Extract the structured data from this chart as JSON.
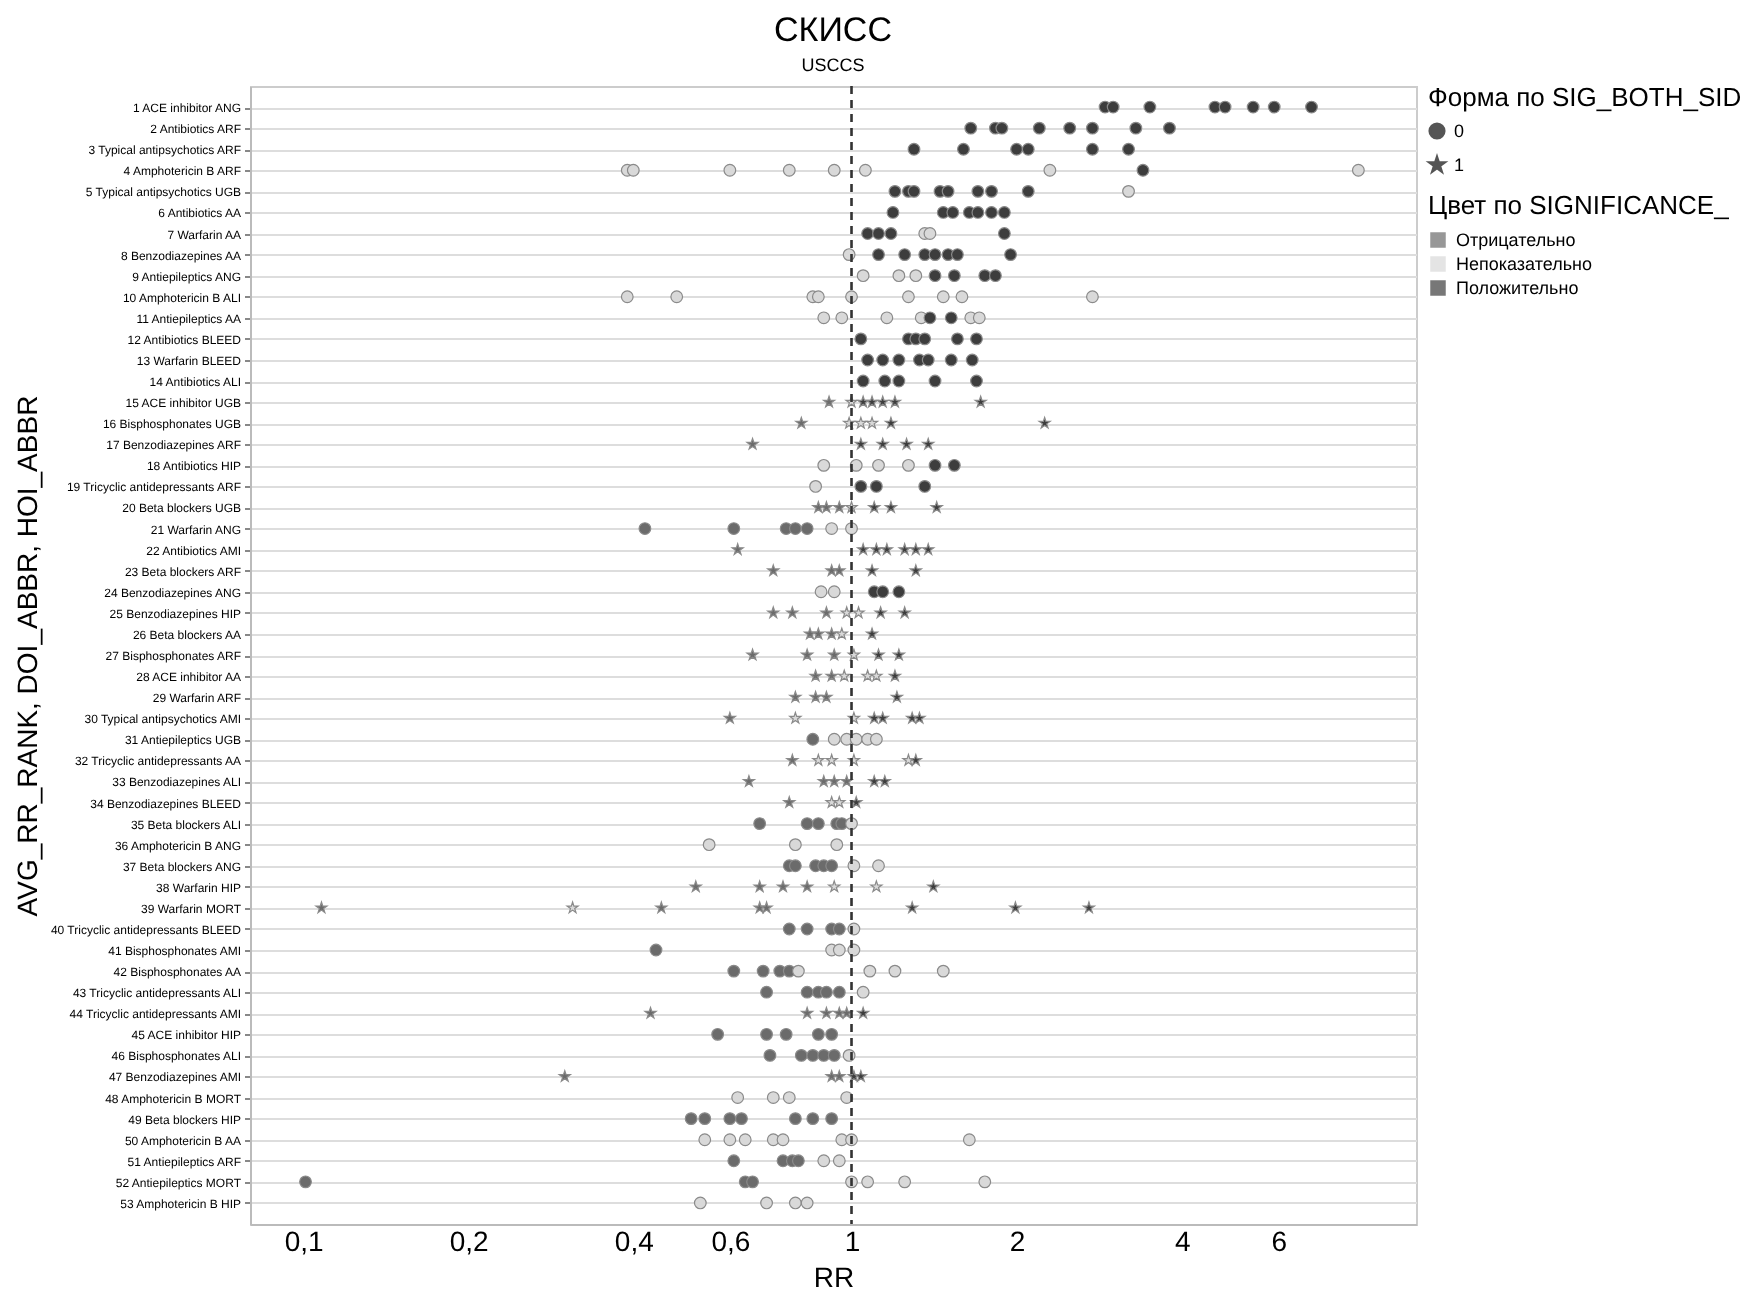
{
  "chart_data": {
    "type": "scatter",
    "orientation": "horizontal",
    "title": "СКИСС",
    "subtitle": "USCCS",
    "xlabel": "RR",
    "ylabel": "AVG_RR_RANK, DOI_ABBR, HOI_ABBR",
    "legend_title": "Цвет по SIGNIFICANCE_",
    "annotations": [
      "Форма по SIG_BOTH_SID",
      "0",
      "1"
    ],
    "legend": "top right",
    "grid": "y",
    "log": "x",
    "xlim": [
      0.08,
      10.7
    ],
    "xticks": [
      {
        "value": 0.1,
        "label": "0,1"
      },
      {
        "value": 0.2,
        "label": "0,2"
      },
      {
        "value": 0.4,
        "label": "0,4"
      },
      {
        "value": 0.6,
        "label": "0,6"
      },
      1,
      2,
      4,
      6
    ],
    "ref_lines": [
      {
        "axis": "x",
        "value": 1,
        "line_style": "dashed",
        "color": "#333333"
      }
    ],
    "categories": [
      "1 ACE inhibitor ANG",
      "2 Antibiotics ARF",
      "3 Typical antipsychotics ARF",
      "4 Amphotericin B ARF",
      "5 Typical antipsychotics UGB",
      "6 Antibiotics AA",
      "7 Warfarin AA",
      "8 Benzodiazepines AA",
      "9 Antiepileptics ANG",
      "10 Amphotericin B ALI",
      "11 Antiepileptics AA",
      "12 Antibiotics BLEED",
      "13 Warfarin BLEED",
      "14 Antibiotics ALI",
      "15 ACE inhibitor UGB",
      "16 Bisphosphonates UGB",
      "17 Benzodiazepines ARF",
      "18 Antibiotics HIP",
      "19 Tricyclic antidepressants ARF",
      "20 Beta blockers UGB",
      "21 Warfarin ANG",
      "22 Antibiotics AMI",
      "23 Beta blockers ARF",
      "24 Benzodiazepines ANG",
      "25 Benzodiazepines HIP",
      "26 Beta blockers AA",
      "27 Bisphosphonates ARF",
      "28 ACE inhibitor AA",
      "29 Warfarin ARF",
      "30 Typical antipsychotics AMI",
      "31 Antiepileptics UGB",
      "32 Tricyclic antidepressants AA",
      "33 Benzodiazepines ALI",
      "34 Benzodiazepines BLEED",
      "35 Beta blockers ALI",
      "36 Amphotericin B ANG",
      "37 Beta blockers ANG",
      "38 Warfarin HIP",
      "39 Warfarin MORT",
      "40 Tricyclic antidepressants BLEED",
      "41 Bisphosphonates AMI",
      "42 Bisphosphonates AA",
      "43 Tricyclic antidepressants ALI",
      "44 Tricyclic antidepressants AMI",
      "45 ACE inhibitor HIP",
      "46 Bisphosphonates ALI",
      "47 Benzodiazepines AMI",
      "48 Amphotericin B MORT",
      "49 Beta blockers HIP",
      "50 Amphotericin B AA",
      "51 Antiepileptics ARF",
      "52 Antiepileptics MORT",
      "53 Amphotericin B HIP"
    ],
    "series": [
      {
        "name": "Отрицательно",
        "color": "#6b6b6b",
        "marker": "circle",
        "values": [
          null,
          null,
          null,
          null,
          null,
          null,
          null,
          null,
          null,
          null,
          null,
          null,
          null,
          null,
          null,
          null,
          null,
          null,
          null,
          null,
          0.42,
          null,
          null,
          null,
          null,
          null,
          null,
          null,
          null,
          null,
          0.85,
          null,
          null,
          null,
          0.68,
          null,
          0.77,
          null,
          null,
          0.77,
          0.44,
          0.61,
          0.7,
          null,
          0.57,
          0.71,
          null,
          null,
          0.51,
          null,
          0.61,
          0.101,
          null
        ]
      },
      {
        "color": "#6b6b6b",
        "marker": "circle",
        "values": [
          null,
          null,
          null,
          null,
          null,
          null,
          null,
          null,
          null,
          null,
          null,
          null,
          null,
          null,
          null,
          null,
          null,
          null,
          null,
          null,
          0.61,
          null,
          null,
          null,
          null,
          null,
          null,
          null,
          null,
          null,
          null,
          null,
          null,
          null,
          0.83,
          null,
          0.79,
          null,
          null,
          0.83,
          null,
          0.69,
          0.83,
          null,
          0.7,
          0.81,
          null,
          null,
          0.54,
          null,
          0.75,
          0.64,
          null
        ]
      },
      {
        "color": "#6b6b6b",
        "marker": "circle",
        "values": [
          null,
          null,
          null,
          null,
          null,
          null,
          null,
          null,
          null,
          null,
          null,
          null,
          null,
          null,
          null,
          null,
          null,
          null,
          null,
          null,
          0.76,
          null,
          null,
          null,
          null,
          null,
          null,
          null,
          null,
          null,
          null,
          null,
          null,
          null,
          0.87,
          null,
          0.86,
          null,
          null,
          0.92,
          null,
          0.74,
          0.87,
          null,
          0.76,
          0.85,
          null,
          null,
          0.6,
          null,
          0.78,
          0.66,
          null
        ]
      },
      {
        "color": "#6b6b6b",
        "marker": "circle",
        "values": [
          null,
          null,
          null,
          null,
          null,
          null,
          null,
          null,
          null,
          null,
          null,
          null,
          null,
          null,
          null,
          null,
          null,
          null,
          null,
          null,
          0.79,
          null,
          null,
          null,
          null,
          null,
          null,
          null,
          null,
          null,
          null,
          null,
          null,
          null,
          0.94,
          null,
          0.89,
          null,
          null,
          0.95,
          null,
          0.77,
          0.9,
          null,
          0.87,
          0.89,
          null,
          null,
          0.63,
          null,
          0.8,
          null,
          null
        ]
      },
      {
        "color": "#6b6b6b",
        "marker": "circle",
        "values": [
          null,
          null,
          null,
          null,
          null,
          null,
          null,
          null,
          null,
          null,
          null,
          null,
          null,
          null,
          null,
          null,
          null,
          null,
          null,
          null,
          0.83,
          null,
          null,
          null,
          null,
          null,
          null,
          null,
          null,
          null,
          null,
          null,
          null,
          null,
          0.96,
          null,
          0.92,
          null,
          null,
          null,
          null,
          null,
          0.95,
          null,
          0.92,
          0.93,
          null,
          null,
          0.79,
          null,
          null,
          null,
          null
        ]
      },
      {
        "color": "#6b6b6b",
        "marker": "circle",
        "values": [
          null,
          null,
          null,
          null,
          null,
          null,
          null,
          null,
          null,
          null,
          null,
          null,
          null,
          null,
          null,
          null,
          null,
          null,
          null,
          null,
          null,
          null,
          null,
          null,
          null,
          null,
          null,
          null,
          null,
          null,
          null,
          null,
          null,
          null,
          null,
          null,
          null,
          null,
          null,
          null,
          null,
          null,
          null,
          null,
          null,
          null,
          null,
          null,
          0.85,
          null,
          null,
          null,
          null
        ]
      },
      {
        "color": "#6b6b6b",
        "marker": "circle",
        "values": [
          null,
          null,
          null,
          null,
          null,
          null,
          null,
          null,
          null,
          null,
          null,
          null,
          null,
          null,
          null,
          null,
          null,
          null,
          null,
          null,
          null,
          null,
          null,
          null,
          null,
          null,
          null,
          null,
          null,
          null,
          null,
          null,
          null,
          null,
          null,
          null,
          null,
          null,
          null,
          null,
          null,
          null,
          null,
          null,
          null,
          null,
          null,
          null,
          0.92,
          null,
          null,
          null,
          null
        ]
      },
      {
        "color": "#6b6b6b",
        "marker": "star",
        "values": [
          null,
          null,
          null,
          null,
          null,
          null,
          null,
          null,
          null,
          null,
          null,
          null,
          null,
          null,
          0.91,
          0.81,
          0.66,
          null,
          null,
          0.87,
          null,
          0.62,
          0.72,
          null,
          0.72,
          0.84,
          0.66,
          0.86,
          0.79,
          0.6,
          null,
          0.78,
          0.65,
          0.77,
          null,
          null,
          null,
          0.52,
          0.108,
          null,
          null,
          null,
          null,
          0.43,
          null,
          null,
          0.3,
          null,
          null,
          null,
          null,
          null,
          null
        ]
      },
      {
        "color": "#6b6b6b",
        "marker": "star",
        "values": [
          null,
          null,
          null,
          null,
          null,
          null,
          null,
          null,
          null,
          null,
          null,
          null,
          null,
          null,
          null,
          null,
          null,
          null,
          null,
          0.9,
          null,
          null,
          0.92,
          null,
          0.78,
          0.87,
          0.83,
          0.92,
          0.86,
          null,
          null,
          null,
          0.89,
          null,
          null,
          null,
          null,
          0.68,
          0.45,
          null,
          null,
          null,
          null,
          0.83,
          null,
          null,
          0.92,
          null,
          null,
          null,
          null,
          null,
          null
        ]
      },
      {
        "color": "#6b6b6b",
        "marker": "star",
        "values": [
          null,
          null,
          null,
          null,
          null,
          null,
          null,
          null,
          null,
          null,
          null,
          null,
          null,
          null,
          null,
          null,
          null,
          null,
          null,
          0.95,
          null,
          null,
          0.95,
          null,
          0.9,
          0.92,
          0.93,
          null,
          0.9,
          null,
          null,
          null,
          0.93,
          null,
          null,
          null,
          null,
          0.75,
          0.68,
          null,
          null,
          null,
          null,
          0.9,
          null,
          null,
          0.95,
          null,
          null,
          null,
          null,
          null,
          null
        ]
      },
      {
        "color": "#6b6b6b",
        "marker": "star",
        "values": [
          null,
          null,
          null,
          null,
          null,
          null,
          null,
          null,
          null,
          null,
          null,
          null,
          null,
          null,
          null,
          null,
          null,
          null,
          null,
          null,
          null,
          null,
          null,
          null,
          null,
          null,
          null,
          null,
          null,
          null,
          null,
          null,
          0.98,
          null,
          null,
          null,
          null,
          0.83,
          0.7,
          null,
          null,
          null,
          null,
          0.95,
          null,
          null,
          null,
          null,
          null,
          null,
          null,
          null,
          null
        ]
      },
      {
        "color": "#6b6b6b",
        "marker": "star",
        "values": [
          null,
          null,
          null,
          null,
          null,
          null,
          null,
          null,
          null,
          null,
          null,
          null,
          null,
          null,
          null,
          null,
          null,
          null,
          null,
          null,
          null,
          null,
          null,
          null,
          null,
          null,
          null,
          null,
          null,
          null,
          null,
          null,
          null,
          null,
          null,
          null,
          null,
          null,
          null,
          null,
          null,
          null,
          null,
          0.98,
          null,
          null,
          null,
          null,
          null,
          null,
          null,
          null,
          null
        ]
      },
      {
        "name": "Непоказательно",
        "color": "#d9d9d9",
        "marker": "circle",
        "values": [
          null,
          null,
          null,
          0.39,
          3.2,
          null,
          1.36,
          0.99,
          1.05,
          0.39,
          0.89,
          null,
          null,
          null,
          null,
          null,
          null,
          0.89,
          0.86,
          null,
          0.92,
          null,
          null,
          0.88,
          null,
          null,
          null,
          null,
          null,
          null,
          0.93,
          null,
          null,
          null,
          1.0,
          0.55,
          1.01,
          null,
          null,
          1.01,
          0.92,
          0.8,
          1.05,
          null,
          null,
          0.99,
          null,
          0.62,
          null,
          0.54,
          0.89,
          1.0,
          0.53
        ]
      },
      {
        "color": "#d9d9d9",
        "marker": "circle",
        "values": [
          null,
          null,
          null,
          0.4,
          null,
          null,
          1.39,
          null,
          1.22,
          0.48,
          0.96,
          null,
          null,
          null,
          null,
          null,
          null,
          1.02,
          null,
          null,
          1.0,
          null,
          null,
          0.93,
          null,
          null,
          null,
          null,
          null,
          null,
          0.98,
          null,
          null,
          null,
          null,
          0.79,
          1.12,
          null,
          null,
          null,
          0.95,
          1.08,
          null,
          null,
          null,
          null,
          null,
          0.72,
          null,
          0.6,
          0.95,
          1.07,
          0.7
        ]
      },
      {
        "color": "#d9d9d9",
        "marker": "circle",
        "values": [
          null,
          null,
          null,
          0.6,
          null,
          null,
          null,
          null,
          1.31,
          0.85,
          1.16,
          null,
          null,
          null,
          null,
          null,
          null,
          1.12,
          null,
          null,
          null,
          null,
          null,
          null,
          null,
          null,
          null,
          null,
          null,
          null,
          1.02,
          null,
          null,
          null,
          null,
          0.94,
          null,
          null,
          null,
          null,
          1.01,
          1.2,
          null,
          null,
          null,
          null,
          null,
          0.77,
          null,
          0.64,
          null,
          1.25,
          0.79
        ]
      },
      {
        "color": "#d9d9d9",
        "marker": "circle",
        "values": [
          null,
          null,
          null,
          0.77,
          null,
          null,
          null,
          null,
          null,
          0.87,
          1.34,
          null,
          null,
          null,
          null,
          null,
          null,
          1.27,
          null,
          null,
          null,
          null,
          null,
          null,
          null,
          null,
          null,
          null,
          null,
          null,
          1.07,
          null,
          null,
          null,
          null,
          null,
          null,
          null,
          null,
          null,
          null,
          1.47,
          null,
          null,
          null,
          null,
          null,
          0.98,
          null,
          0.72,
          null,
          1.75,
          0.83
        ]
      },
      {
        "color": "#d9d9d9",
        "marker": "circle",
        "values": [
          null,
          null,
          null,
          0.93,
          null,
          null,
          null,
          null,
          null,
          1.0,
          1.65,
          null,
          null,
          null,
          null,
          null,
          null,
          null,
          null,
          null,
          null,
          null,
          null,
          null,
          null,
          null,
          null,
          null,
          null,
          null,
          1.11,
          null,
          null,
          null,
          null,
          null,
          null,
          null,
          null,
          null,
          null,
          null,
          null,
          null,
          null,
          null,
          null,
          null,
          null,
          0.75,
          null,
          null,
          null
        ]
      },
      {
        "color": "#d9d9d9",
        "marker": "circle",
        "values": [
          null,
          null,
          null,
          1.06,
          null,
          null,
          null,
          null,
          null,
          1.27,
          1.71,
          null,
          null,
          null,
          null,
          null,
          null,
          null,
          null,
          null,
          null,
          null,
          null,
          null,
          null,
          null,
          null,
          null,
          null,
          null,
          null,
          null,
          null,
          null,
          null,
          null,
          null,
          null,
          null,
          null,
          null,
          null,
          null,
          null,
          null,
          null,
          null,
          null,
          null,
          0.96,
          null,
          null,
          null
        ]
      },
      {
        "color": "#d9d9d9",
        "marker": "circle",
        "values": [
          null,
          null,
          null,
          2.3,
          null,
          null,
          null,
          null,
          null,
          1.47,
          null,
          null,
          null,
          null,
          null,
          null,
          null,
          null,
          null,
          null,
          null,
          null,
          null,
          null,
          null,
          null,
          null,
          null,
          null,
          null,
          null,
          null,
          null,
          null,
          null,
          null,
          null,
          null,
          null,
          null,
          null,
          null,
          null,
          null,
          null,
          null,
          null,
          null,
          null,
          1.0,
          null,
          null,
          null
        ]
      },
      {
        "color": "#d9d9d9",
        "marker": "circle",
        "values": [
          null,
          null,
          null,
          8.4,
          null,
          null,
          null,
          null,
          null,
          1.59,
          null,
          null,
          null,
          null,
          null,
          null,
          null,
          null,
          null,
          null,
          null,
          null,
          null,
          null,
          null,
          null,
          null,
          null,
          null,
          null,
          null,
          null,
          null,
          null,
          null,
          null,
          null,
          null,
          null,
          null,
          null,
          null,
          null,
          null,
          null,
          null,
          null,
          null,
          null,
          1.64,
          null,
          null,
          null
        ]
      },
      {
        "color": "#d9d9d9",
        "marker": "circle",
        "values": [
          null,
          null,
          null,
          null,
          null,
          null,
          null,
          null,
          null,
          2.75,
          null,
          null,
          null,
          null,
          null,
          null,
          null,
          null,
          null,
          null,
          null,
          null,
          null,
          null,
          null,
          null,
          null,
          null,
          null,
          null,
          null,
          null,
          null,
          null,
          null,
          null,
          null,
          null,
          null,
          null,
          null,
          null,
          null,
          null,
          null,
          null,
          null,
          null,
          null,
          null,
          null,
          null,
          null
        ]
      },
      {
        "color": "#d9d9d9",
        "marker": "star",
        "values": [
          null,
          null,
          null,
          null,
          null,
          null,
          null,
          null,
          null,
          null,
          null,
          null,
          null,
          null,
          1.0,
          0.99,
          null,
          null,
          null,
          1.0,
          null,
          null,
          null,
          null,
          0.98,
          0.96,
          1.01,
          0.97,
          null,
          0.79,
          null,
          0.87,
          null,
          0.92,
          null,
          null,
          null,
          0.93,
          0.31,
          null,
          null,
          null,
          null,
          null,
          null,
          null,
          null,
          null,
          null,
          null,
          null,
          null,
          null
        ]
      },
      {
        "color": "#d9d9d9",
        "marker": "star",
        "values": [
          null,
          null,
          null,
          null,
          null,
          null,
          null,
          null,
          null,
          null,
          null,
          null,
          null,
          null,
          null,
          1.04,
          null,
          null,
          null,
          null,
          null,
          null,
          null,
          null,
          1.03,
          null,
          null,
          1.07,
          null,
          1.01,
          null,
          0.92,
          null,
          0.95,
          null,
          null,
          null,
          1.11,
          null,
          null,
          null,
          null,
          null,
          null,
          null,
          null,
          null,
          null,
          null,
          null,
          null,
          null,
          null
        ]
      },
      {
        "color": "#d9d9d9",
        "marker": "star",
        "values": [
          null,
          null,
          null,
          null,
          null,
          null,
          null,
          null,
          null,
          null,
          null,
          null,
          null,
          null,
          null,
          1.09,
          null,
          null,
          null,
          null,
          null,
          null,
          null,
          null,
          null,
          null,
          null,
          1.11,
          null,
          null,
          null,
          1.01,
          null,
          null,
          null,
          null,
          null,
          null,
          null,
          null,
          null,
          null,
          null,
          null,
          null,
          null,
          null,
          null,
          null,
          null,
          null,
          null,
          null
        ]
      },
      {
        "color": "#d9d9d9",
        "marker": "star",
        "values": [
          null,
          null,
          null,
          null,
          null,
          null,
          null,
          null,
          null,
          null,
          null,
          null,
          null,
          null,
          null,
          null,
          null,
          null,
          null,
          null,
          null,
          null,
          null,
          null,
          null,
          null,
          null,
          null,
          null,
          null,
          null,
          1.27,
          null,
          null,
          null,
          null,
          null,
          null,
          null,
          null,
          null,
          null,
          null,
          null,
          null,
          null,
          null,
          null,
          null,
          null,
          null,
          null,
          null
        ]
      },
      {
        "name": "Положительно",
        "color": "#3d3d3d",
        "marker": "circle",
        "values": [
          2.9,
          1.65,
          1.3,
          3.4,
          1.2,
          1.19,
          1.07,
          1.12,
          1.42,
          null,
          1.39,
          1.04,
          1.07,
          1.05,
          null,
          null,
          null,
          1.42,
          1.04,
          null,
          null,
          null,
          null,
          1.1,
          null,
          null,
          null,
          null,
          null,
          null,
          null,
          null,
          null,
          null,
          null,
          null,
          null,
          null,
          null,
          null,
          null,
          null,
          null,
          null,
          null,
          null,
          null,
          null,
          null,
          null,
          null,
          null,
          null
        ]
      },
      {
        "color": "#3d3d3d",
        "marker": "circle",
        "values": [
          3.0,
          1.83,
          1.6,
          null,
          1.27,
          1.47,
          1.12,
          1.25,
          1.54,
          null,
          1.52,
          1.27,
          1.14,
          1.15,
          null,
          null,
          null,
          1.54,
          1.11,
          null,
          null,
          null,
          null,
          1.14,
          null,
          null,
          null,
          null,
          null,
          null,
          null,
          null,
          null,
          null,
          null,
          null,
          null,
          null,
          null,
          null,
          null,
          null,
          null,
          null,
          null,
          null,
          null,
          null,
          null,
          null,
          null,
          null,
          null
        ]
      },
      {
        "color": "#3d3d3d",
        "marker": "circle",
        "values": [
          3.5,
          1.88,
          2.0,
          null,
          1.3,
          1.53,
          1.18,
          1.36,
          1.75,
          null,
          null,
          1.31,
          1.22,
          1.22,
          null,
          null,
          null,
          null,
          1.36,
          null,
          null,
          null,
          null,
          1.22,
          null,
          null,
          null,
          null,
          null,
          null,
          null,
          null,
          null,
          null,
          null,
          null,
          null,
          null,
          null,
          null,
          null,
          null,
          null,
          null,
          null,
          null,
          null,
          null,
          null,
          null,
          null,
          null,
          null
        ]
      },
      {
        "color": "#3d3d3d",
        "marker": "circle",
        "values": [
          4.6,
          2.2,
          2.1,
          null,
          1.45,
          1.64,
          1.9,
          1.42,
          1.83,
          null,
          null,
          1.36,
          1.33,
          1.42,
          null,
          null,
          null,
          null,
          null,
          null,
          null,
          null,
          null,
          null,
          null,
          null,
          null,
          null,
          null,
          null,
          null,
          null,
          null,
          null,
          null,
          null,
          null,
          null,
          null,
          null,
          null,
          null,
          null,
          null,
          null,
          null,
          null,
          null,
          null,
          null,
          null,
          null,
          null
        ]
      },
      {
        "color": "#3d3d3d",
        "marker": "circle",
        "values": [
          4.8,
          2.5,
          2.75,
          null,
          1.5,
          1.7,
          null,
          1.5,
          null,
          null,
          null,
          1.56,
          1.38,
          1.69,
          null,
          null,
          null,
          null,
          null,
          null,
          null,
          null,
          null,
          null,
          null,
          null,
          null,
          null,
          null,
          null,
          null,
          null,
          null,
          null,
          null,
          null,
          null,
          null,
          null,
          null,
          null,
          null,
          null,
          null,
          null,
          null,
          null,
          null,
          null,
          null,
          null,
          null,
          null
        ]
      },
      {
        "color": "#3d3d3d",
        "marker": "circle",
        "values": [
          5.4,
          2.75,
          3.2,
          null,
          1.7,
          1.8,
          null,
          1.56,
          null,
          null,
          null,
          1.69,
          1.52,
          null,
          null,
          null,
          null,
          null,
          null,
          null,
          null,
          null,
          null,
          null,
          null,
          null,
          null,
          null,
          null,
          null,
          null,
          null,
          null,
          null,
          null,
          null,
          null,
          null,
          null,
          null,
          null,
          null,
          null,
          null,
          null,
          null,
          null,
          null,
          null,
          null,
          null,
          null,
          null
        ]
      },
      {
        "color": "#3d3d3d",
        "marker": "circle",
        "values": [
          5.9,
          3.3,
          null,
          null,
          1.8,
          1.9,
          null,
          1.95,
          null,
          null,
          null,
          null,
          1.66,
          null,
          null,
          null,
          null,
          null,
          null,
          null,
          null,
          null,
          null,
          null,
          null,
          null,
          null,
          null,
          null,
          null,
          null,
          null,
          null,
          null,
          null,
          null,
          null,
          null,
          null,
          null,
          null,
          null,
          null,
          null,
          null,
          null,
          null,
          null,
          null,
          null,
          null,
          null,
          null
        ]
      },
      {
        "color": "#3d3d3d",
        "marker": "circle",
        "values": [
          6.9,
          3.8,
          null,
          null,
          2.1,
          null,
          null,
          null,
          null,
          null,
          null,
          null,
          null,
          null,
          null,
          null,
          null,
          null,
          null,
          null,
          null,
          null,
          null,
          null,
          null,
          null,
          null,
          null,
          null,
          null,
          null,
          null,
          null,
          null,
          null,
          null,
          null,
          null,
          null,
          null,
          null,
          null,
          null,
          null,
          null,
          null,
          null,
          null,
          null,
          null,
          null,
          null,
          null
        ]
      },
      {
        "color": "#3d3d3d",
        "marker": "star",
        "values": [
          null,
          null,
          null,
          null,
          null,
          null,
          null,
          null,
          null,
          null,
          null,
          null,
          null,
          null,
          1.05,
          1.18,
          1.04,
          null,
          null,
          1.1,
          null,
          1.05,
          1.09,
          null,
          1.13,
          1.09,
          1.12,
          1.2,
          1.21,
          1.1,
          null,
          1.31,
          1.1,
          1.02,
          null,
          null,
          null,
          1.41,
          1.29,
          null,
          null,
          null,
          null,
          1.05,
          null,
          null,
          1.01,
          null,
          null,
          null,
          null,
          null,
          null
        ]
      },
      {
        "color": "#3d3d3d",
        "marker": "star",
        "values": [
          null,
          null,
          null,
          null,
          null,
          null,
          null,
          null,
          null,
          null,
          null,
          null,
          null,
          null,
          1.09,
          2.25,
          1.14,
          null,
          null,
          1.18,
          null,
          1.11,
          1.31,
          null,
          1.25,
          null,
          1.22,
          null,
          null,
          1.14,
          null,
          null,
          1.15,
          null,
          null,
          null,
          null,
          null,
          1.99,
          null,
          null,
          null,
          null,
          null,
          null,
          null,
          1.04,
          null,
          null,
          null,
          null,
          null,
          null
        ]
      },
      {
        "color": "#3d3d3d",
        "marker": "star",
        "values": [
          null,
          null,
          null,
          null,
          null,
          null,
          null,
          null,
          null,
          null,
          null,
          null,
          null,
          null,
          1.14,
          null,
          1.26,
          null,
          null,
          1.43,
          null,
          1.16,
          null,
          null,
          null,
          null,
          null,
          null,
          null,
          1.29,
          null,
          null,
          null,
          null,
          null,
          null,
          null,
          null,
          2.71,
          null,
          null,
          null,
          null,
          null,
          null,
          null,
          null,
          null,
          null,
          null,
          null,
          null,
          null
        ]
      },
      {
        "color": "#3d3d3d",
        "marker": "star",
        "values": [
          null,
          null,
          null,
          null,
          null,
          null,
          null,
          null,
          null,
          null,
          null,
          null,
          null,
          null,
          1.2,
          null,
          1.38,
          null,
          null,
          null,
          null,
          1.25,
          null,
          null,
          null,
          null,
          null,
          null,
          null,
          1.33,
          null,
          null,
          null,
          null,
          null,
          null,
          null,
          null,
          null,
          null,
          null,
          null,
          null,
          null,
          null,
          null,
          null,
          null,
          null,
          null,
          null,
          null,
          null
        ]
      },
      {
        "color": "#3d3d3d",
        "marker": "star",
        "values": [
          null,
          null,
          null,
          null,
          null,
          null,
          null,
          null,
          null,
          null,
          null,
          null,
          null,
          null,
          1.72,
          null,
          null,
          null,
          null,
          null,
          null,
          1.31,
          null,
          null,
          null,
          null,
          null,
          null,
          null,
          null,
          null,
          null,
          null,
          null,
          null,
          null,
          null,
          null,
          null,
          null,
          null,
          null,
          null,
          null,
          null,
          null,
          null,
          null,
          null,
          null,
          null,
          null,
          null
        ]
      },
      {
        "color": "#3d3d3d",
        "marker": "star",
        "values": [
          null,
          null,
          null,
          null,
          null,
          null,
          null,
          null,
          null,
          null,
          null,
          null,
          null,
          null,
          null,
          null,
          null,
          null,
          null,
          null,
          null,
          1.38,
          null,
          null,
          null,
          null,
          null,
          null,
          null,
          null,
          null,
          null,
          null,
          null,
          null,
          null,
          null,
          null,
          null,
          null,
          null,
          null,
          null,
          null,
          null,
          null,
          null,
          null,
          null,
          null,
          null,
          null,
          null
        ]
      }
    ]
  }
}
